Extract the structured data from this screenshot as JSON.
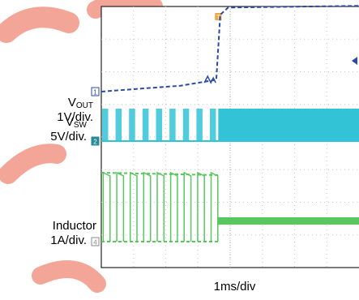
{
  "chart_data": {
    "type": "line",
    "x_unit": "ms",
    "x_scale_label": "1ms/div",
    "xlim": [
      0,
      6.5
    ],
    "divisions": 8,
    "trigger_marker": "T",
    "series": [
      {
        "name": "VOUT",
        "name_main": "V",
        "name_sub": "OUT",
        "scale": "1V/div.",
        "channel": "1",
        "color": "#2a4aa8",
        "points": [
          [
            0,
            0.0
          ],
          [
            1.0,
            0.05
          ],
          [
            2.0,
            0.1
          ],
          [
            2.9,
            0.2
          ],
          [
            3.0,
            1.3
          ],
          [
            3.2,
            1.42
          ],
          [
            6.5,
            1.45
          ]
        ]
      },
      {
        "name": "VSW",
        "name_main": "V",
        "name_sub": "SW",
        "scale": "5V/div.",
        "channel": "2",
        "color": "#33c3d6",
        "pulse_period_ms": 0.34,
        "pulse_end_ms": 2.95
      },
      {
        "name": "Inductor",
        "name_main": "Inductor",
        "scale": "1A/div.",
        "channel": "4",
        "color": "#57c85e",
        "pulse_period_ms": 0.34,
        "pulse_end_ms": 2.95
      }
    ]
  }
}
